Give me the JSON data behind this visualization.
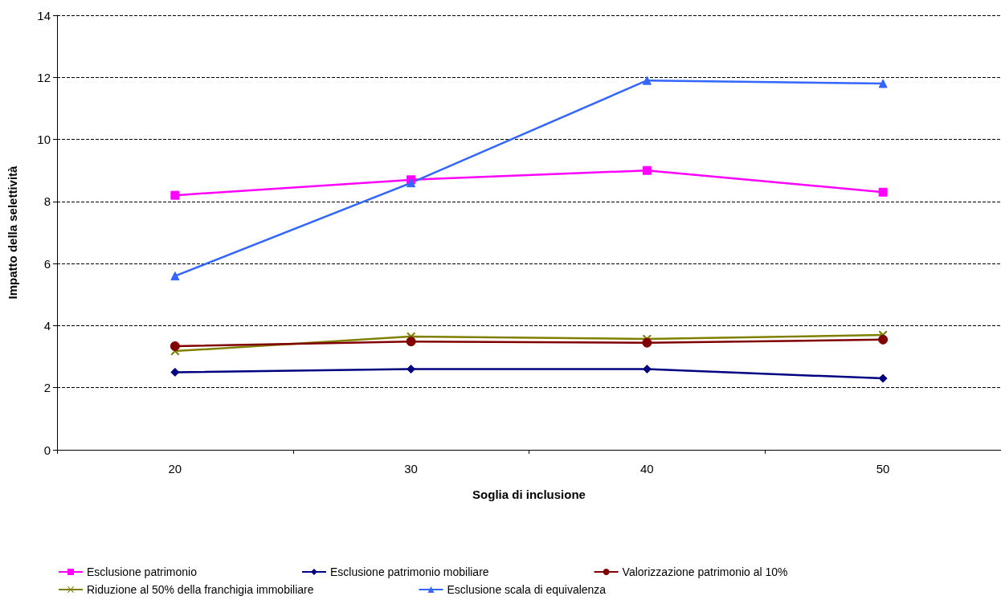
{
  "chart_data": {
    "type": "line",
    "xlabel": "Soglia di inclusione",
    "ylabel": "Impatto della selettività",
    "categories": [
      "20",
      "30",
      "40",
      "50"
    ],
    "series": [
      {
        "name": "Esclusione patrimonio",
        "color": "#ff00ff",
        "marker": "square",
        "values": [
          8.2,
          8.7,
          9.0,
          8.3
        ]
      },
      {
        "name": "Esclusione patrimonio mobiliare",
        "color": "#000080",
        "marker": "diamond",
        "values": [
          2.5,
          2.6,
          2.6,
          2.3
        ]
      },
      {
        "name": "Valorizzazione patrimonio al 10%",
        "color": "#800000",
        "marker": "circle",
        "values": [
          3.34,
          3.49,
          3.45,
          3.55
        ]
      },
      {
        "name": "Riduzione al 50% della franchigia immobiliare",
        "color": "#808000",
        "marker": "cross",
        "values": [
          3.18,
          3.65,
          3.57,
          3.7
        ]
      },
      {
        "name": "Esclusione scala di equivalenza",
        "color": "#3366ff",
        "marker": "triangle",
        "values": [
          5.6,
          8.6,
          11.9,
          11.8
        ]
      }
    ],
    "ylim": [
      0,
      14
    ],
    "yticks": [
      0,
      2,
      4,
      6,
      8,
      10,
      12,
      14
    ],
    "grid": "y",
    "legend": "bottom"
  }
}
